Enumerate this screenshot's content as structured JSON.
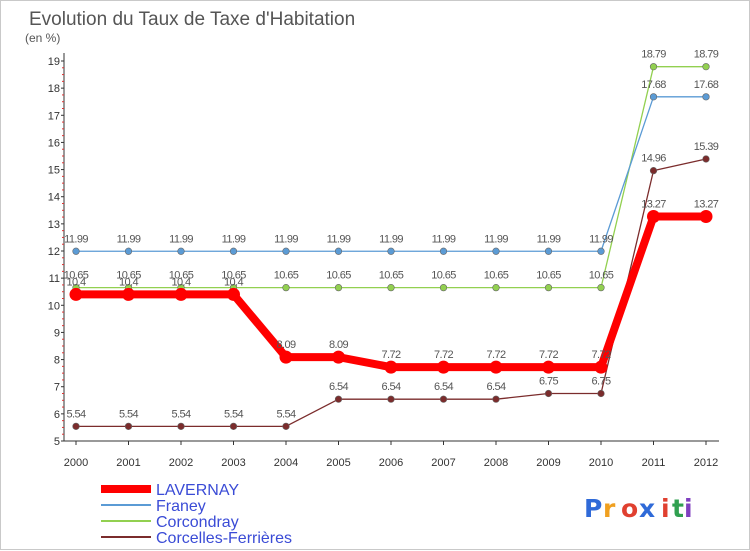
{
  "chart_data": {
    "type": "line",
    "title": "Evolution du Taux de Taxe d'Habitation",
    "subtitle": "(en %)",
    "x": [
      "2000",
      "2001",
      "2002",
      "2003",
      "2004",
      "2005",
      "2006",
      "2007",
      "2008",
      "2009",
      "2010",
      "2011",
      "2012"
    ],
    "ylim": [
      5,
      19
    ],
    "yticks": [
      5,
      6,
      7,
      8,
      9,
      10,
      11,
      12,
      13,
      14,
      15,
      16,
      17,
      18,
      19
    ],
    "grid": false,
    "legend_position": "bottom-left",
    "series": [
      {
        "name": "LAVERNAY",
        "color": "#ff0000",
        "emphasis": true,
        "values": [
          10.4,
          10.4,
          10.4,
          10.4,
          8.09,
          8.09,
          7.72,
          7.72,
          7.72,
          7.72,
          7.72,
          13.27,
          13.27
        ],
        "labels": [
          "10.4",
          "10.4",
          "10.4",
          "10.4",
          "8.09",
          "8.09",
          "7.72",
          "7.72",
          "7.72",
          "7.72",
          "7.72",
          "13.27",
          "13.27"
        ]
      },
      {
        "name": "Franey",
        "color": "#5b9bd5",
        "values": [
          11.99,
          11.99,
          11.99,
          11.99,
          11.99,
          11.99,
          11.99,
          11.99,
          11.99,
          11.99,
          11.99,
          17.68,
          17.68
        ],
        "labels": [
          "11.99",
          "11.99",
          "11.99",
          "11.99",
          "11.99",
          "11.99",
          "11.99",
          "11.99",
          "11.99",
          "11.99",
          "11.99",
          "17.68",
          "17.68"
        ]
      },
      {
        "name": "Corcondray",
        "color": "#92d050",
        "values": [
          10.65,
          10.65,
          10.65,
          10.65,
          10.65,
          10.65,
          10.65,
          10.65,
          10.65,
          10.65,
          10.65,
          18.79,
          18.79
        ],
        "labels": [
          "10.65",
          "10.65",
          "10.65",
          "10.65",
          "10.65",
          "10.65",
          "10.65",
          "10.65",
          "10.65",
          "10.65",
          "10.65",
          "18.79",
          "18.79"
        ]
      },
      {
        "name": "Corcelles-Ferrières",
        "color": "#7b2c2c",
        "values": [
          5.54,
          5.54,
          5.54,
          5.54,
          5.54,
          6.54,
          6.54,
          6.54,
          6.54,
          6.75,
          6.75,
          14.96,
          15.39
        ],
        "labels": [
          "5.54",
          "5.54",
          "5.54",
          "5.54",
          "5.54",
          "6.54",
          "6.54",
          "6.54",
          "6.54",
          "6.75",
          "6.75",
          "14.96",
          "15.39"
        ]
      }
    ]
  },
  "logo": {
    "text": "Proxiti"
  }
}
